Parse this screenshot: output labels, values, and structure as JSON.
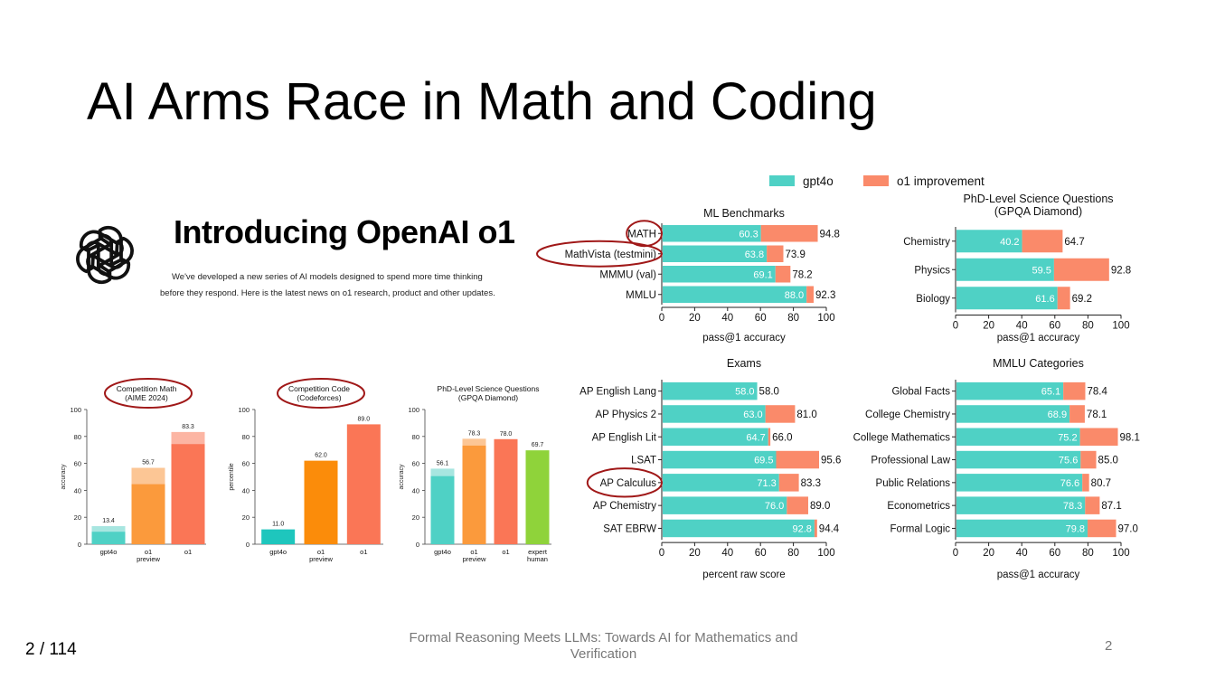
{
  "slide": {
    "title": "AI Arms Race in Math and Coding"
  },
  "intro": {
    "title": "Introducing OpenAI o1",
    "subtitle_line1": "We've developed a new series of AI models designed to spend more time thinking",
    "subtitle_line2": "before they respond. Here is the latest news on o1 research, product and other updates."
  },
  "legend": {
    "items": [
      {
        "label": "gpt4o",
        "color": "#4fd1c5"
      },
      {
        "label": "o1 improvement",
        "color": "#fa8a6a"
      }
    ]
  },
  "colors": {
    "gpt4o": "#4fd1c5",
    "improvement": "#fa8a6a",
    "highlight": "#a01818"
  },
  "footer": {
    "page_indicator": "2 / 114",
    "center_line1": "Formal Reasoning Meets LLMs: Towards AI for Mathematics and",
    "center_line2": "Verification",
    "slide_number": "2"
  },
  "chart_data": [
    {
      "type": "bar",
      "orientation": "vertical",
      "title": "Competition Math\n(AIME 2024)",
      "ylabel": "accuracy",
      "ylim": [
        0,
        100
      ],
      "yticks": [
        0,
        20,
        40,
        60,
        80,
        100
      ],
      "categories": [
        "gpt4o",
        "o1\npreview",
        "o1"
      ],
      "values": [
        13.4,
        56.7,
        83.3
      ],
      "base_values": [
        9.3,
        44.6,
        74.4
      ],
      "colors": [
        "#4fd1c5",
        "#fb9a3c",
        "#fa7656"
      ],
      "light_colors": [
        "#a7e6e0",
        "#fcc695",
        "#fcb5a3"
      ]
    },
    {
      "type": "bar",
      "orientation": "vertical",
      "title": "Competition Code\n(Codeforces)",
      "ylabel": "percentile",
      "ylim": [
        0,
        100
      ],
      "yticks": [
        0,
        20,
        40,
        60,
        80,
        100
      ],
      "categories": [
        "gpt4o",
        "o1\npreview",
        "o1"
      ],
      "values": [
        11.0,
        62.0,
        89.0
      ],
      "colors": [
        "#1ec6bd",
        "#fb8c0a",
        "#fa7656"
      ]
    },
    {
      "type": "bar",
      "orientation": "vertical",
      "title": "PhD-Level Science Questions\n(GPQA Diamond)",
      "ylabel": "accuracy",
      "ylim": [
        0,
        100
      ],
      "yticks": [
        0,
        20,
        40,
        60,
        80,
        100
      ],
      "categories": [
        "gpt4o",
        "o1\npreview",
        "o1",
        "expert\nhuman"
      ],
      "values": [
        56.1,
        78.3,
        78.0,
        69.7
      ],
      "base_values": [
        50.6,
        73.3,
        78.0,
        69.7
      ],
      "colors": [
        "#4fd1c5",
        "#fb9a3c",
        "#fa7656",
        "#8fd33a"
      ],
      "light_colors": [
        "#a7e6e0",
        "#fcc695",
        "#fa7656",
        "#8fd33a"
      ]
    },
    {
      "type": "bar",
      "orientation": "horizontal",
      "stacked": true,
      "title": "ML Benchmarks",
      "xlabel": "pass@1 accuracy",
      "xlim": [
        0,
        100
      ],
      "xticks": [
        0,
        20,
        40,
        60,
        80,
        100
      ],
      "categories": [
        "MATH",
        "MathVista (testmini)",
        "MMMU (val)",
        "MMLU"
      ],
      "gpt4o": [
        60.3,
        63.8,
        69.1,
        88.0
      ],
      "o1": [
        94.8,
        73.9,
        78.2,
        92.3
      ],
      "highlighted": [
        "MATH",
        "MathVista (testmini)"
      ]
    },
    {
      "type": "bar",
      "orientation": "horizontal",
      "stacked": true,
      "title": "PhD-Level Science Questions\n(GPQA Diamond)",
      "xlabel": "pass@1 accuracy",
      "xlim": [
        0,
        100
      ],
      "xticks": [
        0,
        20,
        40,
        60,
        80,
        100
      ],
      "categories": [
        "Chemistry",
        "Physics",
        "Biology"
      ],
      "gpt4o": [
        40.2,
        59.5,
        61.6
      ],
      "o1": [
        64.7,
        92.8,
        69.2
      ]
    },
    {
      "type": "bar",
      "orientation": "horizontal",
      "stacked": true,
      "title": "Exams",
      "xlabel": "percent raw score",
      "xlim": [
        0,
        100
      ],
      "xticks": [
        0,
        20,
        40,
        60,
        80,
        100
      ],
      "categories": [
        "AP English Lang",
        "AP Physics 2",
        "AP English Lit",
        "LSAT",
        "AP Calculus",
        "AP Chemistry",
        "SAT EBRW"
      ],
      "gpt4o": [
        58.0,
        63.0,
        64.7,
        69.5,
        71.3,
        76.0,
        92.8
      ],
      "o1": [
        58.0,
        81.0,
        66.0,
        95.6,
        83.3,
        89.0,
        94.4
      ],
      "highlighted": [
        "AP Calculus"
      ]
    },
    {
      "type": "bar",
      "orientation": "horizontal",
      "stacked": true,
      "title": "MMLU Categories",
      "xlabel": "pass@1 accuracy",
      "xlim": [
        0,
        100
      ],
      "xticks": [
        0,
        20,
        40,
        60,
        80,
        100
      ],
      "categories": [
        "Global Facts",
        "College Chemistry",
        "College Mathematics",
        "Professional Law",
        "Public Relations",
        "Econometrics",
        "Formal Logic"
      ],
      "gpt4o": [
        65.1,
        68.9,
        75.2,
        75.6,
        76.6,
        78.3,
        79.8
      ],
      "o1": [
        78.4,
        78.1,
        98.1,
        85.0,
        80.7,
        87.1,
        97.0
      ]
    }
  ]
}
